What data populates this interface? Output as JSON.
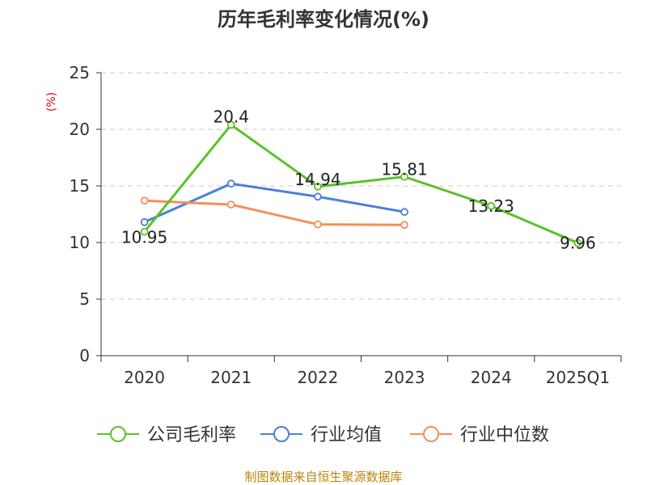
{
  "chart_data": {
    "type": "line",
    "title": "历年毛利率变化情况(%)",
    "unit_label": "(%)",
    "categories": [
      "2020",
      "2021",
      "2022",
      "2023",
      "2024",
      "2025Q1"
    ],
    "ylim": [
      0,
      25
    ],
    "yticks": [
      0,
      5,
      10,
      15,
      20,
      25
    ],
    "grid": true,
    "legend_position": "bottom",
    "series": [
      {
        "name": "公司毛利率",
        "color": "#5ac229",
        "values": [
          10.95,
          20.4,
          14.94,
          15.81,
          13.23,
          9.96
        ],
        "labels": [
          "10.95",
          "20.4",
          "14.94",
          "15.81",
          "13.23",
          "9.96"
        ]
      },
      {
        "name": "行业均值",
        "color": "#4a7fd9",
        "values": [
          11.8,
          15.2,
          14.05,
          12.7,
          null,
          null
        ]
      },
      {
        "name": "行业中位数",
        "color": "#f58e5a",
        "values": [
          13.7,
          13.35,
          11.6,
          11.55,
          null,
          null
        ]
      }
    ],
    "source": "制图数据来自恒生聚源数据库"
  }
}
